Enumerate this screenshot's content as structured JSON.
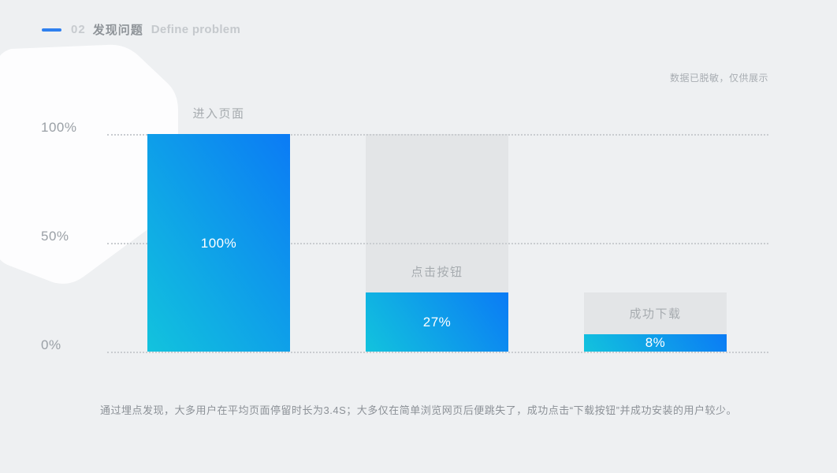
{
  "header": {
    "index": "02",
    "title": "发现问题",
    "subtitle": "Define problem"
  },
  "note": "数据已脱敏，仅供展示",
  "caption": "通过埋点发现，大多用户在平均页面停留时长为3.4S；大多仅在简单浏览网页后便跳失了，成功点击“下载按钮”并成功安装的用户较少。",
  "colors": {
    "background": "#eef0f2",
    "accent_blue": "#2f80ef",
    "bar_gradient_start": "#12c3dd",
    "bar_gradient_end": "#0b7bf5",
    "placeholder_gray": "#e3e5e7",
    "blob_white": "#fdfdfe"
  },
  "chart_data": {
    "type": "bar",
    "title": "",
    "xlabel": "",
    "ylabel": "",
    "categories": [
      "进入页面",
      "点击按钮",
      "成功下载"
    ],
    "values": [
      100,
      27,
      8
    ],
    "value_labels": [
      "100%",
      "27%",
      "8%"
    ],
    "placeholder_values": [
      100,
      100,
      27
    ],
    "yticks": [
      {
        "label": "100%",
        "value": 100
      },
      {
        "label": "50%",
        "value": 50
      },
      {
        "label": "0%",
        "value": 0
      }
    ],
    "ylim": [
      0,
      100
    ],
    "grid": "horizontal dotted",
    "legend": "none",
    "bar_color_gradient": [
      "#12c3dd",
      "#0b7bf5"
    ],
    "placeholder_color": "#e3e5e7"
  }
}
